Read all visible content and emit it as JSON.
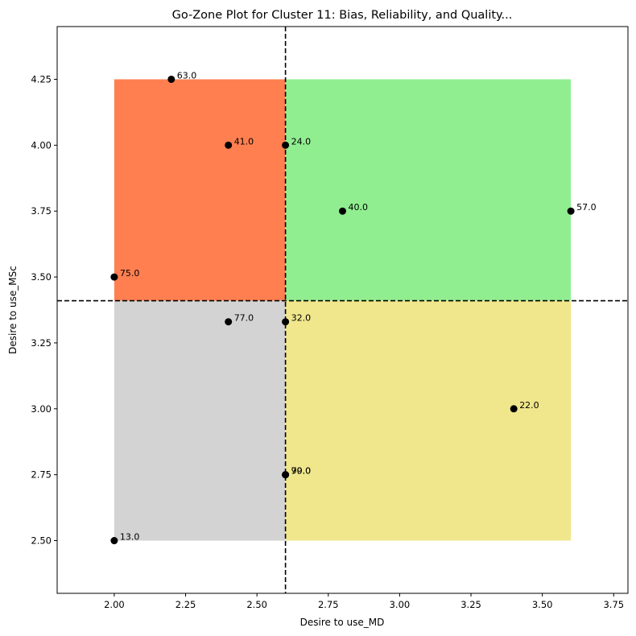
{
  "chart_data": {
    "type": "scatter",
    "title": "Go-Zone Plot for Cluster 11: Bias, Reliability, and Quality...",
    "xlabel": "Desire to use_MD",
    "ylabel": "Desire to use_MSc",
    "xlim": [
      1.8,
      3.8
    ],
    "ylim": [
      2.3,
      4.45
    ],
    "xticks": [
      "2.00",
      "2.25",
      "2.50",
      "2.75",
      "3.00",
      "3.25",
      "3.50",
      "3.75"
    ],
    "yticks": [
      "2.50",
      "2.75",
      "3.00",
      "3.25",
      "3.50",
      "3.75",
      "4.00",
      "4.25"
    ],
    "x_mean": 2.6,
    "y_mean": 3.41,
    "quadrants": [
      {
        "name": "top-left",
        "color": "#ff7f50",
        "x": [
          2.0,
          2.6
        ],
        "y": [
          3.41,
          4.25
        ]
      },
      {
        "name": "top-right",
        "color": "#90ee90",
        "x": [
          2.6,
          3.6
        ],
        "y": [
          3.41,
          4.25
        ]
      },
      {
        "name": "bottom-left",
        "color": "#d3d3d3",
        "x": [
          2.0,
          2.6
        ],
        "y": [
          2.5,
          3.41
        ]
      },
      {
        "name": "bottom-right",
        "color": "#f0e68c",
        "x": [
          2.6,
          3.6
        ],
        "y": [
          2.5,
          3.41
        ]
      }
    ],
    "points": [
      {
        "x": 2.2,
        "y": 4.25,
        "label": "63.0"
      },
      {
        "x": 2.4,
        "y": 4.0,
        "label": "41.0"
      },
      {
        "x": 2.6,
        "y": 4.0,
        "label": "24.0"
      },
      {
        "x": 2.8,
        "y": 3.75,
        "label": "40.0"
      },
      {
        "x": 3.6,
        "y": 3.75,
        "label": "57.0"
      },
      {
        "x": 2.0,
        "y": 3.5,
        "label": "75.0"
      },
      {
        "x": 2.4,
        "y": 3.33,
        "label": "77.0"
      },
      {
        "x": 2.6,
        "y": 3.33,
        "label": "32.0"
      },
      {
        "x": 3.4,
        "y": 3.0,
        "label": "22.0"
      },
      {
        "x": 2.6,
        "y": 2.75,
        "label": "70.0"
      },
      {
        "x": 2.6,
        "y": 2.75,
        "label": "99.0"
      },
      {
        "x": 2.0,
        "y": 2.5,
        "label": "13.0"
      }
    ],
    "point_color": "#000000",
    "mean_line_color": "#000000",
    "mean_line_style": "dashed",
    "grid": false,
    "legend": false
  }
}
